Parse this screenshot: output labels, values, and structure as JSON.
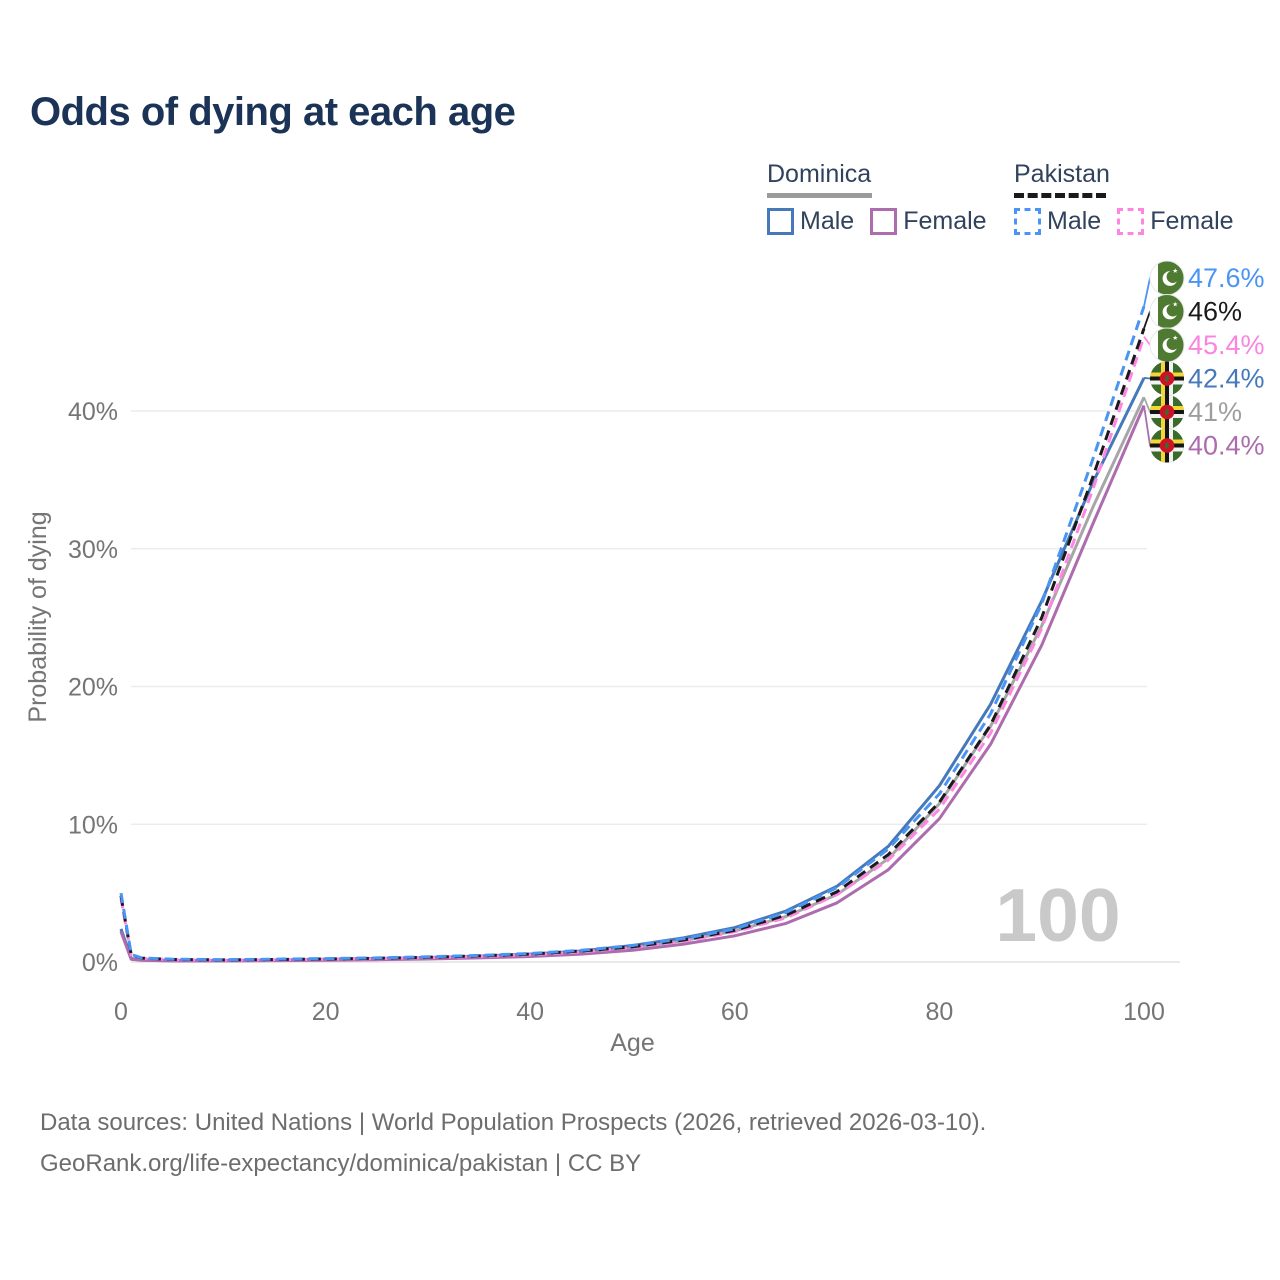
{
  "title": "Odds of dying at each age",
  "legend": {
    "groups": [
      {
        "country": "Dominica",
        "line_style": "solid",
        "line_color": "#9b9b9b",
        "items": [
          {
            "label": "Male",
            "series_key": "dom_male"
          },
          {
            "label": "Female",
            "series_key": "dom_fem"
          }
        ]
      },
      {
        "country": "Pakistan",
        "line_style": "dashed",
        "line_color": "#1a1a1a",
        "items": [
          {
            "label": "Male",
            "series_key": "pak_male"
          },
          {
            "label": "Female",
            "series_key": "pak_fem"
          }
        ]
      }
    ]
  },
  "source": {
    "line1": "Data sources: United Nations | World Population Prospects (2026, retrieved 2026-03-10).",
    "line2": "GeoRank.org/life-expectancy/dominica/pakistan | CC BY"
  },
  "chart_data": {
    "type": "line",
    "xlabel": "Age",
    "ylabel": "Probability of dying",
    "watermark": "100",
    "x_ticks": [
      0,
      20,
      40,
      60,
      80,
      100
    ],
    "y_ticks": [
      0,
      10,
      20,
      30,
      40
    ],
    "y_tick_suffix": "%",
    "xlim": [
      0,
      100
    ],
    "ylim": [
      0,
      50
    ],
    "grid": true,
    "ages": [
      0,
      1,
      2,
      5,
      10,
      15,
      20,
      25,
      30,
      35,
      40,
      45,
      50,
      55,
      60,
      65,
      70,
      75,
      80,
      85,
      90,
      95,
      100
    ],
    "series": [
      {
        "key": "dom_total",
        "name": "Dominica (both sexes)",
        "country": "Dominica",
        "sex": "total",
        "flag": "dominica",
        "color": "#a6a6a6",
        "label_color": "#9e9e9e",
        "dash": false,
        "values": [
          2.3,
          0.22,
          0.13,
          0.09,
          0.09,
          0.12,
          0.17,
          0.22,
          0.28,
          0.37,
          0.5,
          0.7,
          1.05,
          1.55,
          2.25,
          3.3,
          4.9,
          7.5,
          11.5,
          17.1,
          24.4,
          33.0,
          41.0
        ],
        "end_label": "41%"
      },
      {
        "key": "dom_male",
        "name": "Dominica Male",
        "country": "Dominica",
        "sex": "male",
        "flag": "dominica",
        "color": "#4579ba",
        "label_color": "#4579ba",
        "dash": false,
        "values": [
          2.4,
          0.25,
          0.15,
          0.1,
          0.1,
          0.14,
          0.2,
          0.26,
          0.33,
          0.43,
          0.57,
          0.8,
          1.2,
          1.75,
          2.5,
          3.7,
          5.5,
          8.4,
          12.8,
          18.7,
          26.2,
          34.8,
          42.4
        ],
        "end_label": "42.4%"
      },
      {
        "key": "dom_fem",
        "name": "Dominica Female",
        "country": "Dominica",
        "sex": "female",
        "flag": "dominica",
        "color": "#ad6cae",
        "label_color": "#ad6cae",
        "dash": false,
        "values": [
          2.2,
          0.2,
          0.12,
          0.08,
          0.08,
          0.1,
          0.13,
          0.17,
          0.22,
          0.3,
          0.4,
          0.57,
          0.85,
          1.3,
          1.9,
          2.8,
          4.3,
          6.7,
          10.4,
          15.8,
          23.0,
          31.8,
          40.4
        ],
        "end_label": "40.4%"
      },
      {
        "key": "pak_fem",
        "name": "Pakistan Female",
        "country": "Pakistan",
        "sex": "female",
        "flag": "pakistan",
        "color": "#ff85e2",
        "label_color": "#fb84e1",
        "dash": true,
        "values": [
          4.6,
          0.5,
          0.27,
          0.17,
          0.14,
          0.16,
          0.2,
          0.24,
          0.31,
          0.4,
          0.52,
          0.73,
          1.05,
          1.5,
          2.2,
          3.2,
          4.9,
          7.4,
          11.1,
          16.6,
          24.2,
          34.3,
          45.4
        ],
        "end_label": "45.4%"
      },
      {
        "key": "pak_total",
        "name": "Pakistan (both sexes)",
        "country": "Pakistan",
        "sex": "total",
        "flag": "pakistan",
        "color": "#1a1a1a",
        "label_color": "#1a1a1a",
        "dash": true,
        "values": [
          4.8,
          0.52,
          0.28,
          0.18,
          0.15,
          0.18,
          0.22,
          0.27,
          0.34,
          0.44,
          0.57,
          0.8,
          1.1,
          1.6,
          2.3,
          3.4,
          5.1,
          7.8,
          11.6,
          17.2,
          25.0,
          35.2,
          46.0
        ],
        "end_label": "46%"
      },
      {
        "key": "pak_male",
        "name": "Pakistan Male",
        "country": "Pakistan",
        "sex": "male",
        "flag": "pakistan",
        "color": "#4a94f4",
        "label_color": "#4a94f4",
        "dash": true,
        "values": [
          5.0,
          0.55,
          0.3,
          0.2,
          0.17,
          0.2,
          0.25,
          0.3,
          0.38,
          0.48,
          0.62,
          0.85,
          1.2,
          1.7,
          2.4,
          3.6,
          5.4,
          8.2,
          12.2,
          18.0,
          26.0,
          36.5,
          47.6
        ],
        "end_label": "47.6%"
      }
    ]
  }
}
